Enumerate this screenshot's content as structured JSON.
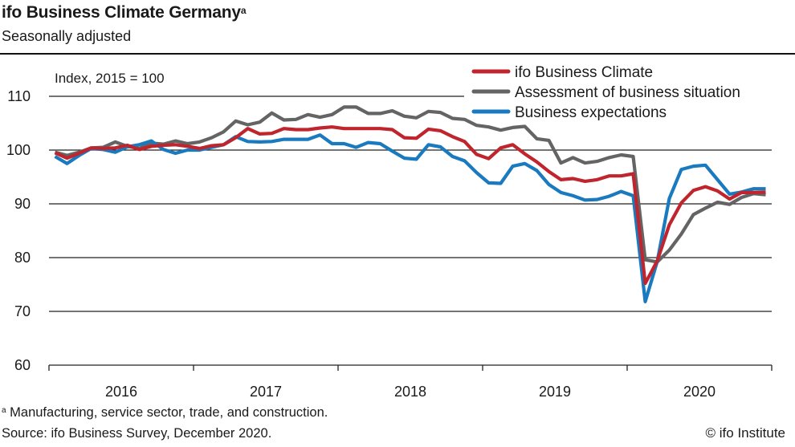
{
  "header": {
    "title": "ifo Business Climate Germany",
    "title_superscript": "a",
    "subtitle": "Seasonally adjusted"
  },
  "footer": {
    "footnote_marker": "a",
    "footnote": "Manufacturing, service sector, trade, and construction.",
    "source": "Source: ifo Business Survey, December 2020.",
    "copyright": "© ifo Institute"
  },
  "chart_data": {
    "type": "line",
    "title": "ifo Business Climate Germany",
    "subtitle": "Seasonally adjusted",
    "ylabel": "Index, 2015 = 100",
    "xlabel": "",
    "ylim": [
      60,
      110
    ],
    "yticks": [
      60,
      70,
      80,
      90,
      100,
      110
    ],
    "ytick_labels": [
      "60",
      "70",
      "80",
      "90",
      "100",
      "110"
    ],
    "x_start": "2016-01",
    "x_end": "2020-12",
    "frequency": "monthly",
    "year_labels": [
      "2016",
      "2017",
      "2018",
      "2019",
      "2020"
    ],
    "grid": "horizontal",
    "legend_position": "top-right",
    "series": [
      {
        "name": "ifo Business Climate",
        "color": "#c0252d",
        "values": [
          99.5,
          98.5,
          99.4,
          100.4,
          100.3,
          100.4,
          100.9,
          100.1,
          100.7,
          100.9,
          101.0,
          100.7,
          100.3,
          100.8,
          101.0,
          102.3,
          104.0,
          103.0,
          103.1,
          104.0,
          103.8,
          103.8,
          104.1,
          104.3,
          104.0,
          104.0,
          104.0,
          104.0,
          103.8,
          102.3,
          102.2,
          103.9,
          103.6,
          102.5,
          101.6,
          99.2,
          98.4,
          100.4,
          101.0,
          99.3,
          97.8,
          96.0,
          94.5,
          94.7,
          94.2,
          94.5,
          95.2,
          95.2,
          95.6,
          75.2,
          79.4,
          86.1,
          90.2,
          92.5,
          93.2,
          92.4,
          90.9,
          92.1,
          92.1,
          92.2
        ]
      },
      {
        "name": "Assessment of business situation",
        "color": "#646464",
        "values": [
          99.6,
          99.0,
          99.6,
          100.4,
          100.5,
          101.5,
          100.7,
          100.3,
          101.3,
          101.1,
          101.7,
          101.2,
          101.5,
          102.3,
          103.4,
          105.4,
          104.7,
          105.2,
          106.9,
          105.6,
          105.7,
          106.6,
          106.1,
          106.6,
          108.0,
          108.0,
          106.8,
          106.8,
          107.3,
          106.3,
          106.0,
          107.2,
          107.0,
          105.9,
          105.7,
          104.6,
          104.3,
          103.7,
          104.2,
          104.4,
          102.1,
          101.8,
          97.6,
          98.6,
          97.6,
          97.9,
          98.6,
          99.1,
          98.8,
          79.6,
          79.2,
          81.4,
          84.4,
          88.0,
          89.2,
          90.3,
          89.9,
          91.2,
          91.9,
          91.7
        ]
      },
      {
        "name": "Business expectations",
        "color": "#1a7abf",
        "values": [
          98.8,
          97.5,
          99.0,
          100.3,
          100.1,
          99.6,
          100.6,
          101.0,
          101.7,
          100.1,
          99.4,
          100.0,
          100.0,
          100.5,
          101.0,
          102.5,
          101.6,
          101.5,
          101.6,
          102.0,
          102.0,
          102.0,
          102.8,
          101.2,
          101.2,
          100.5,
          101.4,
          101.2,
          99.8,
          98.5,
          98.3,
          101.0,
          100.6,
          98.8,
          98.0,
          95.8,
          93.9,
          93.8,
          97.0,
          97.5,
          96.2,
          93.6,
          92.1,
          91.5,
          90.7,
          90.8,
          91.4,
          92.3,
          91.5,
          71.8,
          79.3,
          91.0,
          96.4,
          97.0,
          97.2,
          94.5,
          91.8,
          92.2,
          92.8,
          92.8
        ]
      }
    ]
  }
}
